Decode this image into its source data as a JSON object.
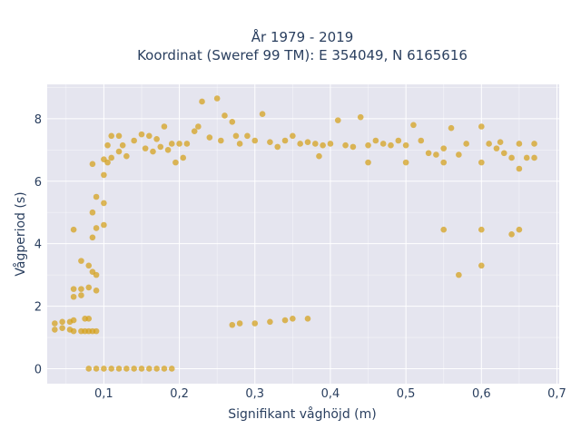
{
  "chart_data": {
    "type": "scatter",
    "title_line1": "År 1979 - 2019",
    "title_line2": "Koordinat (Sweref 99 TM): E 354049, N 6165616",
    "xlabel": "Signifikant våghöjd (m)",
    "ylabel": "Vågperiod (s)",
    "xlim": [
      0.025,
      0.703
    ],
    "ylim": [
      -0.48,
      9.1
    ],
    "x_ticks": [
      {
        "value": 0.1,
        "label": "0,1"
      },
      {
        "value": 0.2,
        "label": "0,2"
      },
      {
        "value": 0.3,
        "label": "0,3"
      },
      {
        "value": 0.4,
        "label": "0,4"
      },
      {
        "value": 0.5,
        "label": "0,5"
      },
      {
        "value": 0.6,
        "label": "0,6"
      },
      {
        "value": 0.7,
        "label": "0,7"
      }
    ],
    "y_ticks": [
      {
        "value": 0,
        "label": "0"
      },
      {
        "value": 2,
        "label": "2"
      },
      {
        "value": 4,
        "label": "4"
      },
      {
        "value": 6,
        "label": "6"
      },
      {
        "value": 8,
        "label": "8"
      }
    ],
    "marker_color": "#d4a017",
    "marker_opacity": 0.72,
    "plot_bg": "#e5e5ef",
    "grid_color": "#ffffff",
    "grid": true,
    "legend": false,
    "series": [
      {
        "points": [
          [
            0.035,
            1.45
          ],
          [
            0.035,
            1.25
          ],
          [
            0.045,
            1.5
          ],
          [
            0.045,
            1.3
          ],
          [
            0.055,
            1.5
          ],
          [
            0.055,
            1.25
          ],
          [
            0.06,
            4.45
          ],
          [
            0.06,
            2.55
          ],
          [
            0.06,
            2.3
          ],
          [
            0.06,
            1.55
          ],
          [
            0.06,
            1.2
          ],
          [
            0.07,
            3.45
          ],
          [
            0.07,
            2.55
          ],
          [
            0.07,
            2.35
          ],
          [
            0.07,
            1.2
          ],
          [
            0.075,
            1.6
          ],
          [
            0.075,
            1.2
          ],
          [
            0.08,
            3.3
          ],
          [
            0.08,
            2.6
          ],
          [
            0.08,
            1.6
          ],
          [
            0.08,
            1.2
          ],
          [
            0.085,
            6.55
          ],
          [
            0.085,
            5.0
          ],
          [
            0.085,
            4.2
          ],
          [
            0.085,
            3.1
          ],
          [
            0.085,
            1.2
          ],
          [
            0.09,
            5.5
          ],
          [
            0.09,
            4.5
          ],
          [
            0.09,
            3.0
          ],
          [
            0.09,
            2.5
          ],
          [
            0.09,
            1.2
          ],
          [
            0.1,
            6.7
          ],
          [
            0.1,
            6.2
          ],
          [
            0.1,
            5.3
          ],
          [
            0.1,
            4.6
          ],
          [
            0.105,
            7.15
          ],
          [
            0.105,
            6.6
          ],
          [
            0.11,
            7.45
          ],
          [
            0.11,
            6.75
          ],
          [
            0.12,
            7.45
          ],
          [
            0.12,
            6.95
          ],
          [
            0.125,
            7.15
          ],
          [
            0.13,
            6.8
          ],
          [
            0.14,
            7.3
          ],
          [
            0.15,
            7.5
          ],
          [
            0.155,
            7.05
          ],
          [
            0.16,
            7.45
          ],
          [
            0.165,
            6.95
          ],
          [
            0.17,
            7.35
          ],
          [
            0.175,
            7.1
          ],
          [
            0.18,
            7.75
          ],
          [
            0.185,
            7.0
          ],
          [
            0.19,
            7.2
          ],
          [
            0.195,
            6.6
          ],
          [
            0.2,
            7.2
          ],
          [
            0.205,
            6.75
          ],
          [
            0.21,
            7.2
          ],
          [
            0.22,
            7.6
          ],
          [
            0.225,
            7.75
          ],
          [
            0.23,
            8.55
          ],
          [
            0.24,
            7.4
          ],
          [
            0.25,
            8.65
          ],
          [
            0.255,
            7.3
          ],
          [
            0.26,
            8.1
          ],
          [
            0.27,
            7.9
          ],
          [
            0.275,
            7.45
          ],
          [
            0.28,
            7.2
          ],
          [
            0.29,
            7.45
          ],
          [
            0.3,
            7.3
          ],
          [
            0.31,
            8.15
          ],
          [
            0.32,
            7.25
          ],
          [
            0.33,
            7.1
          ],
          [
            0.34,
            7.3
          ],
          [
            0.35,
            7.45
          ],
          [
            0.36,
            7.2
          ],
          [
            0.37,
            7.25
          ],
          [
            0.38,
            7.2
          ],
          [
            0.385,
            6.8
          ],
          [
            0.39,
            7.15
          ],
          [
            0.4,
            7.2
          ],
          [
            0.41,
            7.95
          ],
          [
            0.42,
            7.15
          ],
          [
            0.43,
            7.1
          ],
          [
            0.44,
            8.05
          ],
          [
            0.45,
            7.15
          ],
          [
            0.46,
            7.3
          ],
          [
            0.47,
            7.2
          ],
          [
            0.48,
            7.15
          ],
          [
            0.49,
            7.3
          ],
          [
            0.5,
            7.15
          ],
          [
            0.51,
            7.8
          ],
          [
            0.52,
            7.3
          ],
          [
            0.53,
            6.9
          ],
          [
            0.54,
            6.85
          ],
          [
            0.55,
            7.05
          ],
          [
            0.56,
            7.7
          ],
          [
            0.57,
            6.85
          ],
          [
            0.58,
            7.2
          ],
          [
            0.6,
            7.75
          ],
          [
            0.61,
            7.2
          ],
          [
            0.62,
            7.05
          ],
          [
            0.625,
            7.25
          ],
          [
            0.63,
            6.9
          ],
          [
            0.64,
            6.75
          ],
          [
            0.65,
            7.2
          ],
          [
            0.66,
            6.75
          ],
          [
            0.67,
            7.2
          ],
          [
            0.67,
            6.75
          ],
          [
            0.65,
            6.4
          ],
          [
            0.6,
            6.6
          ],
          [
            0.55,
            6.6
          ],
          [
            0.5,
            6.6
          ],
          [
            0.45,
            6.6
          ],
          [
            0.55,
            4.45
          ],
          [
            0.6,
            4.45
          ],
          [
            0.64,
            4.3
          ],
          [
            0.65,
            4.45
          ],
          [
            0.6,
            3.3
          ],
          [
            0.57,
            3.0
          ],
          [
            0.27,
            1.4
          ],
          [
            0.28,
            1.45
          ],
          [
            0.3,
            1.45
          ],
          [
            0.32,
            1.5
          ],
          [
            0.34,
            1.55
          ],
          [
            0.35,
            1.6
          ],
          [
            0.37,
            1.6
          ],
          [
            0.08,
            0
          ],
          [
            0.09,
            0
          ],
          [
            0.1,
            0
          ],
          [
            0.11,
            0
          ],
          [
            0.12,
            0
          ],
          [
            0.13,
            0
          ],
          [
            0.14,
            0
          ],
          [
            0.15,
            0
          ],
          [
            0.16,
            0
          ],
          [
            0.17,
            0
          ],
          [
            0.18,
            0
          ],
          [
            0.19,
            0
          ]
        ]
      }
    ]
  }
}
